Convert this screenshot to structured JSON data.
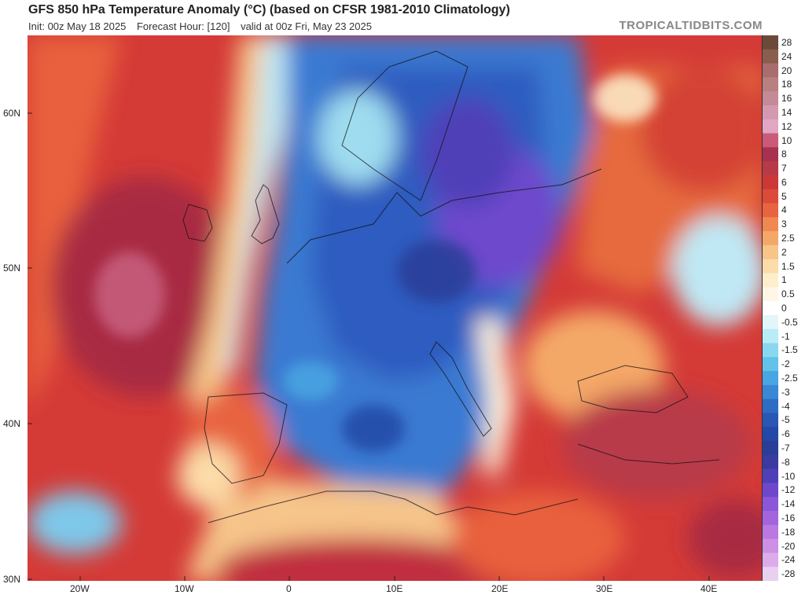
{
  "header": {
    "title": "GFS 850 hPa Temperature Anomaly (°C) (based on CFSR 1981-2010 Climatology)",
    "init": "Init: 00z May 18 2025",
    "forecast_hour": "Forecast Hour: [120]",
    "valid": "valid at 00z Fri, May 23 2025",
    "credit": "TROPICALTIDBITS.COM"
  },
  "chart_data": {
    "type": "heatmap",
    "title": "GFS 850 hPa Temperature Anomaly (°C) (based on CFSR 1981-2010 Climatology)",
    "x_ticks": [
      "20W",
      "10W",
      "0",
      "10E",
      "20E",
      "30E",
      "40E"
    ],
    "x_values": [
      -20,
      -10,
      0,
      10,
      20,
      30,
      40
    ],
    "y_ticks": [
      "60N",
      "50N",
      "40N",
      "30N"
    ],
    "y_values": [
      60,
      50,
      40,
      30
    ],
    "xlim": [
      -25,
      45
    ],
    "ylim": [
      30,
      65
    ],
    "colorbar": {
      "labels": [
        "28",
        "24",
        "20",
        "18",
        "16",
        "14",
        "12",
        "10",
        "8",
        "7",
        "6",
        "5",
        "4",
        "3",
        "2.5",
        "2",
        "1.5",
        "1",
        "0.5",
        "0",
        "-0.5",
        "-1",
        "-1.5",
        "-2",
        "-2.5",
        "-3",
        "-4",
        "-5",
        "-6",
        "-7",
        "-8",
        "-10",
        "-12",
        "-14",
        "-16",
        "-18",
        "-20",
        "-24",
        "-28"
      ],
      "colors": [
        "#6b4a3a",
        "#8a5e4e",
        "#a86e6e",
        "#b88080",
        "#c48a98",
        "#d498b0",
        "#e0a6c4",
        "#ca5a78",
        "#a83050",
        "#b83a48",
        "#cc3838",
        "#dc4a3a",
        "#e86440",
        "#f08850",
        "#f4a868",
        "#f8c488",
        "#fcdca8",
        "#fdeecc",
        "#fff6e6",
        "#ffffff",
        "#e2f6fa",
        "#b8ecf6",
        "#8ad8f0",
        "#62c2ea",
        "#4aa6e2",
        "#3a88d4",
        "#2e6cc4",
        "#2a56b4",
        "#2448a6",
        "#2a3e98",
        "#3a3aa0",
        "#5040b8",
        "#6e48cc",
        "#8c56d8",
        "#a464dc",
        "#ba78e0",
        "#cc90e4",
        "#dcacea",
        "#ead0f0"
      ]
    },
    "regions": [
      {
        "name": "north-atlantic-warm",
        "anomaly": 6
      },
      {
        "name": "central-europe-cold",
        "anomaly": -6
      },
      {
        "name": "poland-cold-core",
        "anomaly": -10
      },
      {
        "name": "eastern-europe-warm",
        "anomaly": 5
      },
      {
        "name": "north-africa-warm",
        "anomaly": 6
      }
    ]
  }
}
